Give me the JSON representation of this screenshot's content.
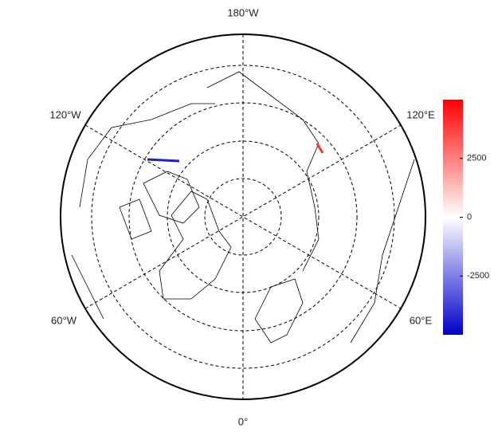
{
  "map": {
    "labels": [
      "180°W",
      "120°W",
      "120°E",
      "60°W",
      "60°E",
      "0°"
    ]
  },
  "colorbar": {
    "lim": [
      -5000,
      5000
    ],
    "ticks": [
      -2500,
      0,
      2500
    ],
    "colors": [
      "#0000cc",
      "#ffffff",
      "#ff0000"
    ]
  }
}
